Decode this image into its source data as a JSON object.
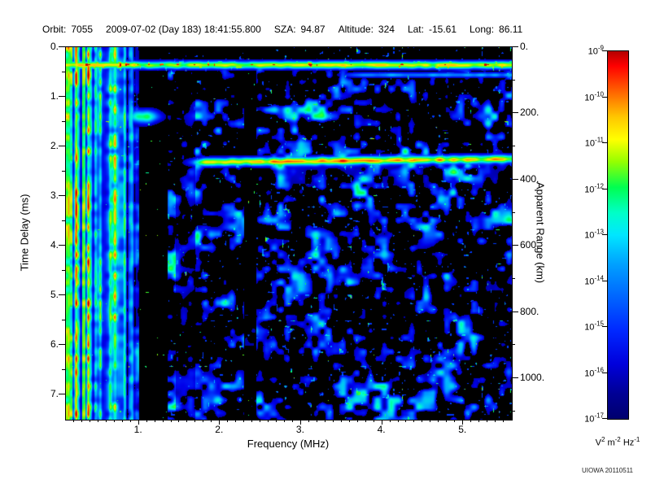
{
  "header": {
    "fields": [
      {
        "label": "Orbit:",
        "value": "7055"
      },
      {
        "label": "",
        "value": "2009-07-02 (Day 183) 18:41:55.800"
      },
      {
        "label": "SZA:",
        "value": "94.87"
      },
      {
        "label": "Altitude:",
        "value": "324"
      },
      {
        "label": "Lat:",
        "value": "-15.61"
      },
      {
        "label": "Long:",
        "value": "86.11"
      }
    ]
  },
  "footer": {
    "watermark": "UIOWA 20110511"
  },
  "chart_data": {
    "type": "heatmap",
    "title": "",
    "xlabel": "Frequency (MHz)",
    "ylabel": "Time Delay (ms)",
    "y2label": "Apparent Range (km)",
    "xlim": [
      0.1,
      5.6
    ],
    "ylim": [
      0,
      7.5
    ],
    "y2lim": [
      0,
      1125
    ],
    "x_ticks": [
      1,
      2,
      3,
      4,
      5
    ],
    "x_tick_labels": [
      "1.",
      "2.",
      "3.",
      "4.",
      "5."
    ],
    "y_ticks": [
      0,
      1,
      2,
      3,
      4,
      5,
      6,
      7
    ],
    "y_tick_labels": [
      "0.",
      "1.",
      "2.",
      "3.",
      "4.",
      "5.",
      "6.",
      "7."
    ],
    "y2_ticks": [
      0,
      200,
      400,
      600,
      800,
      1000
    ],
    "y2_tick_labels": [
      "0.",
      "200.",
      "400.",
      "600.",
      "800.",
      "1000."
    ],
    "grid": false,
    "legend": "colorbar-right",
    "colorbar": {
      "scale": "log",
      "colormap": "jet",
      "tick_exponents": [
        "-9",
        "-10",
        "-11",
        "-12",
        "-13",
        "-14",
        "-15",
        "-16",
        "-17"
      ],
      "units_parts": [
        {
          "t": "V",
          "e": "2"
        },
        {
          "t": "m",
          "e": "-2"
        },
        {
          "t": "Hz",
          "e": "-1"
        }
      ]
    },
    "features": {
      "local_plasma_line": {
        "time_delay_ms": 0.36,
        "freq_range_mhz": [
          0.1,
          5.6
        ]
      },
      "secondary_faint_line": {
        "time_delay_ms": 0.56,
        "freq_range_mhz": [
          3.3,
          5.6
        ]
      },
      "surface_reflection": {
        "time_delay_ms": 2.3,
        "freq_start_mhz": 1.5
      },
      "ionospheric_echo_stripes": {
        "freq_range_mhz": [
          0.1,
          0.95
        ],
        "time_range_ms": [
          0,
          7.5
        ]
      },
      "echo_blob": {
        "freq_mhz": 1.05,
        "time_delay_ms": 1.4
      },
      "dark_bands_mhz": [
        [
          1.0,
          1.35
        ],
        [
          1.45,
          1.7
        ],
        [
          2.3,
          2.45
        ]
      ]
    },
    "seed": 1337
  }
}
